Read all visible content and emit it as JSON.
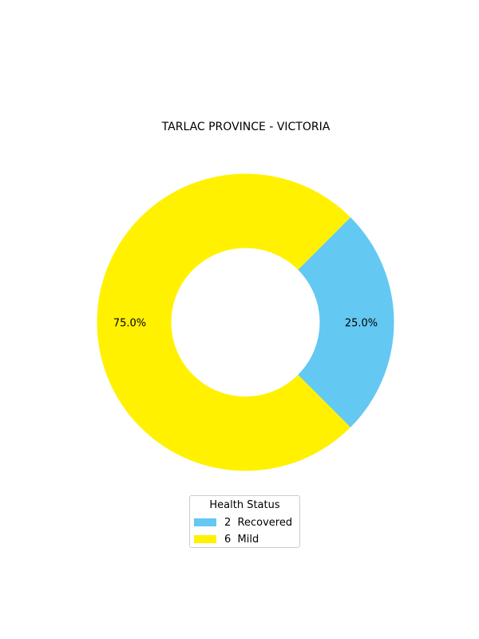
{
  "chart_data": {
    "type": "pie",
    "style": "donut",
    "title": "TARLAC PROVINCE - VICTORIA",
    "categories": [
      "Recovered",
      "Mild"
    ],
    "values": [
      2,
      6
    ],
    "percent_labels": [
      "25.0%",
      "75.0%"
    ],
    "colors": [
      "#63c8f2",
      "#fff100"
    ],
    "legend": {
      "title": "Health Status",
      "placement": "bottom-center",
      "entries": [
        "2  Recovered",
        "6  Mild"
      ]
    }
  }
}
